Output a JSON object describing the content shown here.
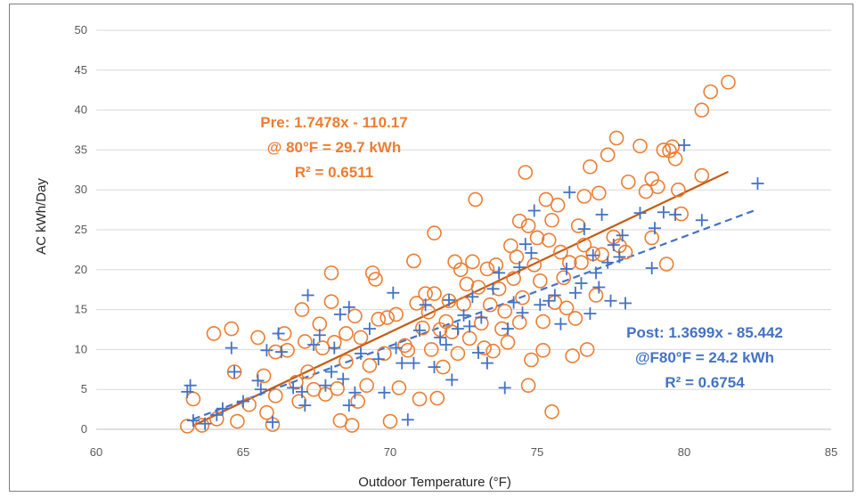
{
  "chart_data": {
    "type": "scatter",
    "title": "",
    "xlabel": "Outdoor Temperature (°F)",
    "ylabel": "AC kWh/Day",
    "xlim": [
      60,
      85
    ],
    "ylim": [
      0,
      50
    ],
    "xticks": [
      "60",
      "65",
      "70",
      "75",
      "80",
      "85"
    ],
    "yticks": [
      "0",
      "5",
      "10",
      "15",
      "20",
      "25",
      "30",
      "35",
      "40",
      "45",
      "50"
    ],
    "grid": true,
    "colors": {
      "pre": "#ed7d31",
      "post": "#4472c4",
      "grid": "#d9d9d9",
      "frame": "#7f7f7f"
    },
    "series": [
      {
        "marker": "circle",
        "color": "#ed7d31",
        "points": [
          [
            63.1,
            0.4
          ],
          [
            63.3,
            3.8
          ],
          [
            63.6,
            0.5
          ],
          [
            64.1,
            1.3
          ],
          [
            64.0,
            12.0
          ],
          [
            64.6,
            12.6
          ],
          [
            64.7,
            7.2
          ],
          [
            64.8,
            1.0
          ],
          [
            65.2,
            3.1
          ],
          [
            65.5,
            11.5
          ],
          [
            65.7,
            6.7
          ],
          [
            65.8,
            2.1
          ],
          [
            66.0,
            0.6
          ],
          [
            66.1,
            9.7
          ],
          [
            66.1,
            4.2
          ],
          [
            66.4,
            12.0
          ],
          [
            66.5,
            9.9
          ],
          [
            66.8,
            5.9
          ],
          [
            66.9,
            3.5
          ],
          [
            67.0,
            15.0
          ],
          [
            67.1,
            11.0
          ],
          [
            67.2,
            7.2
          ],
          [
            67.4,
            5.0
          ],
          [
            67.6,
            13.2
          ],
          [
            67.7,
            10.2
          ],
          [
            67.8,
            4.4
          ],
          [
            68.0,
            19.6
          ],
          [
            68.0,
            16.0
          ],
          [
            68.1,
            10.9
          ],
          [
            68.2,
            5.1
          ],
          [
            68.3,
            1.1
          ],
          [
            68.5,
            12.0
          ],
          [
            68.5,
            8.5
          ],
          [
            68.7,
            0.5
          ],
          [
            68.8,
            14.2
          ],
          [
            68.9,
            3.5
          ],
          [
            69.0,
            11.5
          ],
          [
            69.2,
            5.5
          ],
          [
            69.3,
            8.0
          ],
          [
            69.4,
            19.6
          ],
          [
            69.5,
            18.8
          ],
          [
            69.6,
            13.8
          ],
          [
            69.8,
            9.5
          ],
          [
            69.9,
            14.0
          ],
          [
            70.0,
            1.0
          ],
          [
            70.2,
            14.4
          ],
          [
            70.3,
            5.2
          ],
          [
            70.5,
            10.5
          ],
          [
            70.6,
            9.9
          ],
          [
            70.8,
            21.1
          ],
          [
            70.9,
            15.8
          ],
          [
            71.0,
            3.8
          ],
          [
            71.1,
            12.7
          ],
          [
            71.2,
            17.0
          ],
          [
            71.3,
            14.7
          ],
          [
            71.4,
            10.0
          ],
          [
            71.5,
            24.6
          ],
          [
            71.5,
            17.0
          ],
          [
            71.6,
            3.9
          ],
          [
            71.7,
            12.5
          ],
          [
            71.8,
            7.8
          ],
          [
            71.9,
            13.5
          ],
          [
            72.0,
            16.1
          ],
          [
            72.1,
            12.2
          ],
          [
            72.2,
            21.0
          ],
          [
            72.3,
            9.5
          ],
          [
            72.4,
            20.0
          ],
          [
            72.5,
            15.7
          ],
          [
            72.6,
            18.2
          ],
          [
            72.7,
            11.4
          ],
          [
            72.8,
            21.0
          ],
          [
            72.9,
            28.8
          ],
          [
            73.0,
            17.8
          ],
          [
            73.1,
            13.3
          ],
          [
            73.2,
            10.2
          ],
          [
            73.3,
            20.1
          ],
          [
            73.4,
            15.6
          ],
          [
            73.5,
            9.8
          ],
          [
            73.6,
            20.6
          ],
          [
            73.7,
            17.6
          ],
          [
            73.8,
            12.6
          ],
          [
            73.9,
            14.8
          ],
          [
            74.0,
            10.9
          ],
          [
            74.1,
            23.0
          ],
          [
            74.2,
            18.9
          ],
          [
            74.3,
            21.6
          ],
          [
            74.4,
            13.4
          ],
          [
            74.4,
            26.1
          ],
          [
            74.5,
            16.5
          ],
          [
            74.6,
            32.2
          ],
          [
            74.7,
            25.5
          ],
          [
            74.7,
            5.5
          ],
          [
            74.8,
            8.7
          ],
          [
            74.9,
            20.6
          ],
          [
            75.0,
            24.0
          ],
          [
            75.1,
            18.6
          ],
          [
            75.2,
            9.9
          ],
          [
            75.2,
            13.5
          ],
          [
            75.3,
            28.8
          ],
          [
            75.4,
            23.7
          ],
          [
            75.5,
            26.2
          ],
          [
            75.5,
            2.2
          ],
          [
            75.6,
            15.9
          ],
          [
            75.7,
            28.1
          ],
          [
            75.8,
            22.2
          ],
          [
            75.9,
            19.0
          ],
          [
            76.0,
            15.2
          ],
          [
            76.1,
            20.9
          ],
          [
            76.2,
            9.2
          ],
          [
            76.3,
            13.9
          ],
          [
            76.4,
            25.5
          ],
          [
            76.5,
            20.9
          ],
          [
            76.6,
            23.1
          ],
          [
            76.6,
            29.2
          ],
          [
            76.7,
            10.0
          ],
          [
            76.8,
            32.9
          ],
          [
            76.9,
            22.0
          ],
          [
            77.0,
            16.8
          ],
          [
            77.1,
            29.6
          ],
          [
            77.2,
            21.9
          ],
          [
            77.4,
            34.4
          ],
          [
            77.6,
            24.1
          ],
          [
            77.7,
            36.5
          ],
          [
            77.8,
            23.0
          ],
          [
            78.0,
            22.2
          ],
          [
            78.1,
            31.0
          ],
          [
            78.5,
            35.5
          ],
          [
            78.7,
            29.8
          ],
          [
            78.9,
            31.4
          ],
          [
            78.9,
            24.0
          ],
          [
            79.1,
            30.4
          ],
          [
            79.3,
            35.0
          ],
          [
            79.4,
            20.7
          ],
          [
            79.5,
            34.9
          ],
          [
            79.6,
            35.4
          ],
          [
            79.7,
            33.9
          ],
          [
            79.8,
            30.0
          ],
          [
            79.9,
            27.0
          ],
          [
            80.6,
            40.0
          ],
          [
            80.9,
            42.3
          ],
          [
            81.5,
            43.5
          ],
          [
            80.6,
            31.8
          ]
        ]
      },
      {
        "marker": "plus",
        "color": "#4472c4",
        "points": [
          [
            63.1,
            4.7
          ],
          [
            63.2,
            5.5
          ],
          [
            63.3,
            1.1
          ],
          [
            63.7,
            0.7
          ],
          [
            64.1,
            1.8
          ],
          [
            64.3,
            2.6
          ],
          [
            64.6,
            10.2
          ],
          [
            64.7,
            7.2
          ],
          [
            65.0,
            3.5
          ],
          [
            65.5,
            6.1
          ],
          [
            65.6,
            5.0
          ],
          [
            65.8,
            9.9
          ],
          [
            66.0,
            0.9
          ],
          [
            66.2,
            12.0
          ],
          [
            66.3,
            9.7
          ],
          [
            66.7,
            5.2
          ],
          [
            67.0,
            4.7
          ],
          [
            67.1,
            3.0
          ],
          [
            67.2,
            16.8
          ],
          [
            67.4,
            10.6
          ],
          [
            67.6,
            11.8
          ],
          [
            67.8,
            5.5
          ],
          [
            68.0,
            7.2
          ],
          [
            68.1,
            10.2
          ],
          [
            68.3,
            14.4
          ],
          [
            68.4,
            6.3
          ],
          [
            68.6,
            15.3
          ],
          [
            68.6,
            3.0
          ],
          [
            68.8,
            4.6
          ],
          [
            69.0,
            9.5
          ],
          [
            69.3,
            12.6
          ],
          [
            69.6,
            8.8
          ],
          [
            69.8,
            4.6
          ],
          [
            70.1,
            17.1
          ],
          [
            70.2,
            10.2
          ],
          [
            70.4,
            8.3
          ],
          [
            70.6,
            1.2
          ],
          [
            70.8,
            8.3
          ],
          [
            71.0,
            12.4
          ],
          [
            71.2,
            15.6
          ],
          [
            71.5,
            7.8
          ],
          [
            71.7,
            11.5
          ],
          [
            71.9,
            10.6
          ],
          [
            72.0,
            16.2
          ],
          [
            72.1,
            6.2
          ],
          [
            72.3,
            12.6
          ],
          [
            72.5,
            14.3
          ],
          [
            72.7,
            12.9
          ],
          [
            72.8,
            16.6
          ],
          [
            73.0,
            9.6
          ],
          [
            73.1,
            14.0
          ],
          [
            73.3,
            8.3
          ],
          [
            73.5,
            17.6
          ],
          [
            73.7,
            19.6
          ],
          [
            73.9,
            5.2
          ],
          [
            74.0,
            12.6
          ],
          [
            74.2,
            15.9
          ],
          [
            74.4,
            20.3
          ],
          [
            74.5,
            14.6
          ],
          [
            74.6,
            23.2
          ],
          [
            74.8,
            22.1
          ],
          [
            74.9,
            27.4
          ],
          [
            75.1,
            15.6
          ],
          [
            75.4,
            16.1
          ],
          [
            75.6,
            16.8
          ],
          [
            75.8,
            13.2
          ],
          [
            76.0,
            20.1
          ],
          [
            76.1,
            29.7
          ],
          [
            76.3,
            17.1
          ],
          [
            76.5,
            18.3
          ],
          [
            76.6,
            25.1
          ],
          [
            76.8,
            14.5
          ],
          [
            76.9,
            21.8
          ],
          [
            77.0,
            19.6
          ],
          [
            77.1,
            17.8
          ],
          [
            77.2,
            26.9
          ],
          [
            77.4,
            20.9
          ],
          [
            77.5,
            16.1
          ],
          [
            77.6,
            23.1
          ],
          [
            77.8,
            21.6
          ],
          [
            77.9,
            24.3
          ],
          [
            78.0,
            15.8
          ],
          [
            78.5,
            27.1
          ],
          [
            78.9,
            20.2
          ],
          [
            79.0,
            25.2
          ],
          [
            79.3,
            27.2
          ],
          [
            79.7,
            26.9
          ],
          [
            80.0,
            35.6
          ],
          [
            80.6,
            26.2
          ],
          [
            82.5,
            30.8
          ]
        ]
      }
    ],
    "trendlines": [
      {
        "style": "solid",
        "color": "#c55a11",
        "slope": 1.7478,
        "intercept": -110.17,
        "x_range": [
          63.3,
          81.5
        ]
      },
      {
        "style": "dashed",
        "color": "#4472c4",
        "slope": 1.3699,
        "intercept": -85.442,
        "x_range": [
          63.3,
          82.5
        ]
      }
    ],
    "annotations": {
      "pre": [
        "Pre: 1.7478x - 110.17",
        "@ 80°F = 29.7 kWh",
        "R² = 0.6511"
      ],
      "post": [
        "Post: 1.3699x - 85.442",
        "@F80°F = 24.2 kWh",
        "R² = 0.6754"
      ]
    }
  }
}
